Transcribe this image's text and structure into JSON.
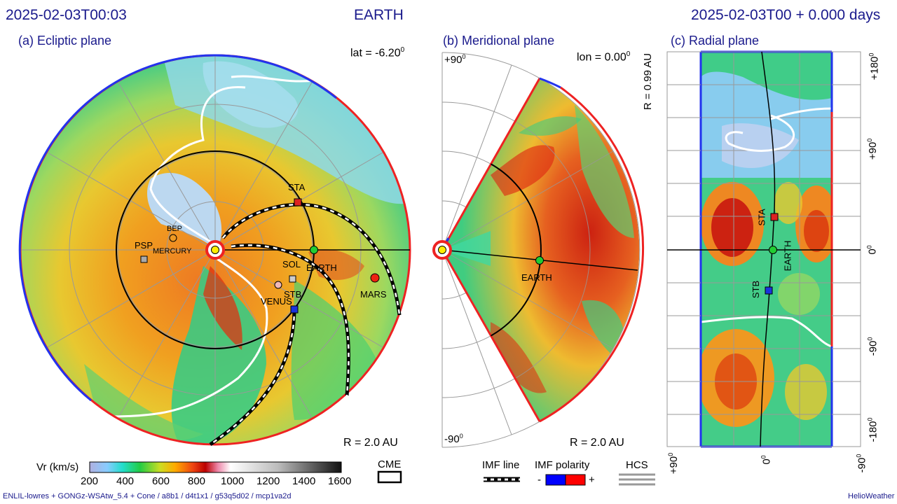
{
  "header": {
    "timestamp": "2025-02-03T00:03",
    "observer": "EARTH",
    "run_time": "2025-02-03T00 +  0.000 days"
  },
  "panels": {
    "ecliptic": {
      "title": "(a) Ecliptic plane",
      "lat_prefix": "lat = -6.20",
      "lat_sup": "0",
      "radius": "R = 2.0 AU",
      "bodies": {
        "psp": "PSP",
        "bep": "BEP",
        "mercury": "MERCURY",
        "sta": "STA",
        "earth": "EARTH",
        "solo": "SOL",
        "stb": "STB",
        "venus": "VENUS",
        "mars": "MARS"
      }
    },
    "meridional": {
      "title": "(b) Meridional plane",
      "lon_prefix": "lon = 0.00",
      "lon_sup": "0",
      "top_lat": "+90",
      "bottom_lat": "-90",
      "deg_sup": "0",
      "radius": "R = 2.0 AU",
      "earth": "EARTH"
    },
    "radial": {
      "title": "(c) Radial plane",
      "radius": "R = 0.99 AU",
      "right_ticks": [
        "+180",
        "+90",
        "0",
        "-90",
        "-180"
      ],
      "bottom_ticks": [
        "+90",
        "0",
        "-90"
      ],
      "deg_sup": "0",
      "sta": "STA",
      "earth": "EARTH",
      "stb": "STB"
    }
  },
  "colorbar": {
    "label": "Vr (km/s)",
    "ticks": [
      "200",
      "400",
      "600",
      "800",
      "1000",
      "1200",
      "1400",
      "1600"
    ]
  },
  "legend": {
    "cme": "CME",
    "imf_line": "IMF line",
    "imf_polarity": "IMF polarity",
    "minus": "-",
    "plus": "+",
    "hcs": "HCS"
  },
  "footer": {
    "model_info": "ENLIL-lowres + GONGz-WSAtw_5.4 + Cone / a8b1 / d4t1x1 / g53q5d02 / mcp1va2d",
    "brand": "HelioWeather"
  },
  "colors": {
    "title_text": "#1a1a8c",
    "negative_polarity": "#0000ff",
    "positive_polarity": "#ff0000",
    "earth_marker": "#22cc33",
    "sta_marker": "#dd2222",
    "stb_marker": "#1a33dd",
    "mars_marker": "#ee2211",
    "sun": "#ffee00"
  }
}
